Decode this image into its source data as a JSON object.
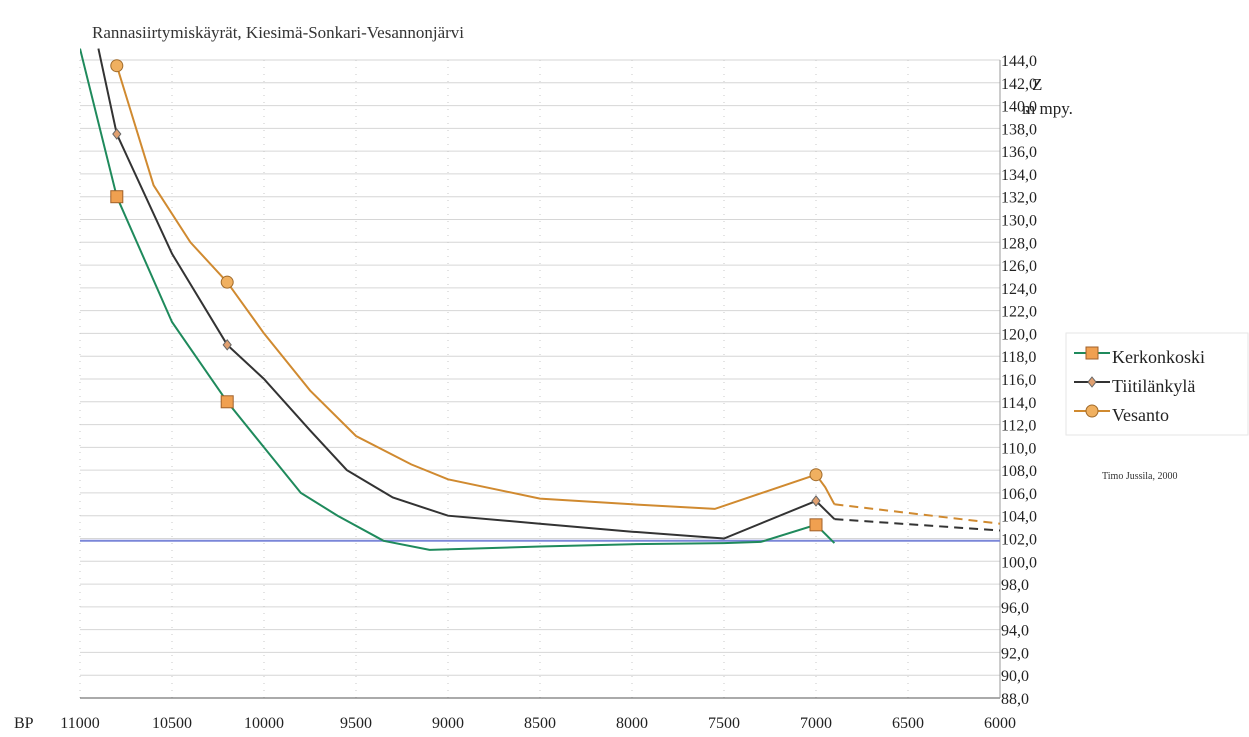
{
  "chart_data": {
    "type": "line",
    "title": "Rannasiirtymiskäyrät, Kiesimä-Sonkari-Vesannonjärvi",
    "xlabel": "BP",
    "ylabel": [
      "Z",
      "m mpy."
    ],
    "xlim": [
      11000,
      6000
    ],
    "ylim": [
      88,
      144
    ],
    "x_ticks": [
      "11000",
      "10500",
      "10000",
      "9500",
      "9000",
      "8500",
      "8000",
      "7500",
      "7000",
      "6500",
      "6000"
    ],
    "y_ticks": [
      "144,0",
      "142,0",
      "140,0",
      "138,0",
      "136,0",
      "134,0",
      "132,0",
      "130,0",
      "128,0",
      "126,0",
      "124,0",
      "122,0",
      "120,0",
      "118,0",
      "116,0",
      "114,0",
      "112,0",
      "110,0",
      "108,0",
      "106,0",
      "104,0",
      "102,0",
      "100,0",
      "98,0",
      "96,0",
      "94,0",
      "92,0",
      "90,0",
      "88,0"
    ],
    "grid": true,
    "legend_position": "right",
    "reference_line": {
      "y": 101.8,
      "color": "#7a86d8"
    },
    "credit": "Timo Jussila, 2000",
    "series": [
      {
        "name": "Kerkonkoski",
        "color": "#1f8a5c",
        "marker": "square",
        "marker_color": "#f0a050",
        "line": [
          [
            11000,
            145
          ],
          [
            10800,
            132
          ],
          [
            10500,
            121
          ],
          [
            10200,
            114
          ],
          [
            10000,
            110
          ],
          [
            9800,
            106
          ],
          [
            9600,
            104
          ],
          [
            9350,
            101.8
          ],
          [
            9100,
            101
          ],
          [
            8500,
            101.3
          ],
          [
            8000,
            101.5
          ],
          [
            7500,
            101.6
          ],
          [
            7300,
            101.7
          ],
          [
            7000,
            103.2
          ],
          [
            6900,
            101.6
          ]
        ],
        "markers": [
          [
            10800,
            132
          ],
          [
            10200,
            114
          ],
          [
            7000,
            103.2
          ]
        ],
        "dashed": []
      },
      {
        "name": "Tiitilänkylä",
        "color": "#333333",
        "marker": "diamond",
        "marker_color": "#e0a070",
        "line": [
          [
            10900,
            145
          ],
          [
            10800,
            137.5
          ],
          [
            10500,
            127
          ],
          [
            10200,
            119
          ],
          [
            10000,
            116
          ],
          [
            9750,
            111.5
          ],
          [
            9550,
            108
          ],
          [
            9300,
            105.6
          ],
          [
            9000,
            104
          ],
          [
            8500,
            103.3
          ],
          [
            8000,
            102.6
          ],
          [
            7500,
            102
          ],
          [
            7000,
            105.3
          ],
          [
            6900,
            103.7
          ]
        ],
        "markers": [
          [
            10800,
            137.5
          ],
          [
            10200,
            119
          ],
          [
            7000,
            105.3
          ]
        ],
        "dashed": [
          [
            6900,
            103.7
          ],
          [
            6000,
            102.7
          ]
        ]
      },
      {
        "name": "Vesanto",
        "color": "#d08a30",
        "marker": "circle",
        "marker_color": "#f0b060",
        "line": [
          [
            10800,
            143.5
          ],
          [
            10600,
            133
          ],
          [
            10400,
            128
          ],
          [
            10200,
            124.5
          ],
          [
            10000,
            120
          ],
          [
            9750,
            115
          ],
          [
            9500,
            111
          ],
          [
            9200,
            108.5
          ],
          [
            9000,
            107.2
          ],
          [
            8500,
            105.5
          ],
          [
            8000,
            105
          ],
          [
            7550,
            104.6
          ],
          [
            7000,
            107.6
          ],
          [
            6950,
            106.5
          ],
          [
            6900,
            105
          ]
        ],
        "markers": [
          [
            10800,
            143.5
          ],
          [
            10200,
            124.5
          ],
          [
            7000,
            107.6
          ]
        ],
        "dashed": [
          [
            6900,
            105
          ],
          [
            6000,
            103.3
          ]
        ]
      }
    ]
  }
}
